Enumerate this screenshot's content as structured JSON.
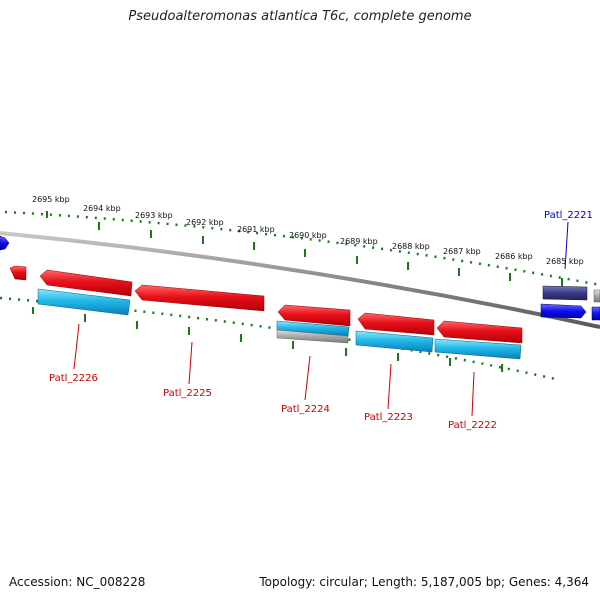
{
  "title": "Pseudoalteromonas atlantica T6c, complete genome",
  "footer": {
    "accession": "Accession: NC_008228",
    "stats": "Topology: circular; Length: 5,187,005 bp; Genes: 4,364"
  },
  "ticks": [
    "2695 kbp",
    "2694 kbp",
    "2693 kbp",
    "2692 kbp",
    "2691 kbp",
    "2690 kbp",
    "2689 kbp",
    "2688 kbp",
    "2687 kbp",
    "2686 kbp",
    "2685 kbp"
  ],
  "genes": [
    {
      "name": "Patl_2226",
      "color": "#cc0000"
    },
    {
      "name": "Patl_2225",
      "color": "#cc0000"
    },
    {
      "name": "Patl_2224",
      "color": "#cc0000"
    },
    {
      "name": "Patl_2223",
      "color": "#cc0000"
    },
    {
      "name": "Patl_2222",
      "color": "#cc0000"
    },
    {
      "name": "Patl_2221",
      "color": "#0000cc"
    }
  ],
  "colors": {
    "backbone": "#8a8a8a",
    "tick": "#1a7a1a",
    "cds_red": "#e8101a",
    "cds_cyan": "#22b8e8",
    "cds_blue": "#1010f0",
    "cds_navy": "#3a3a88",
    "cds_grey": "#a0a0a0"
  }
}
